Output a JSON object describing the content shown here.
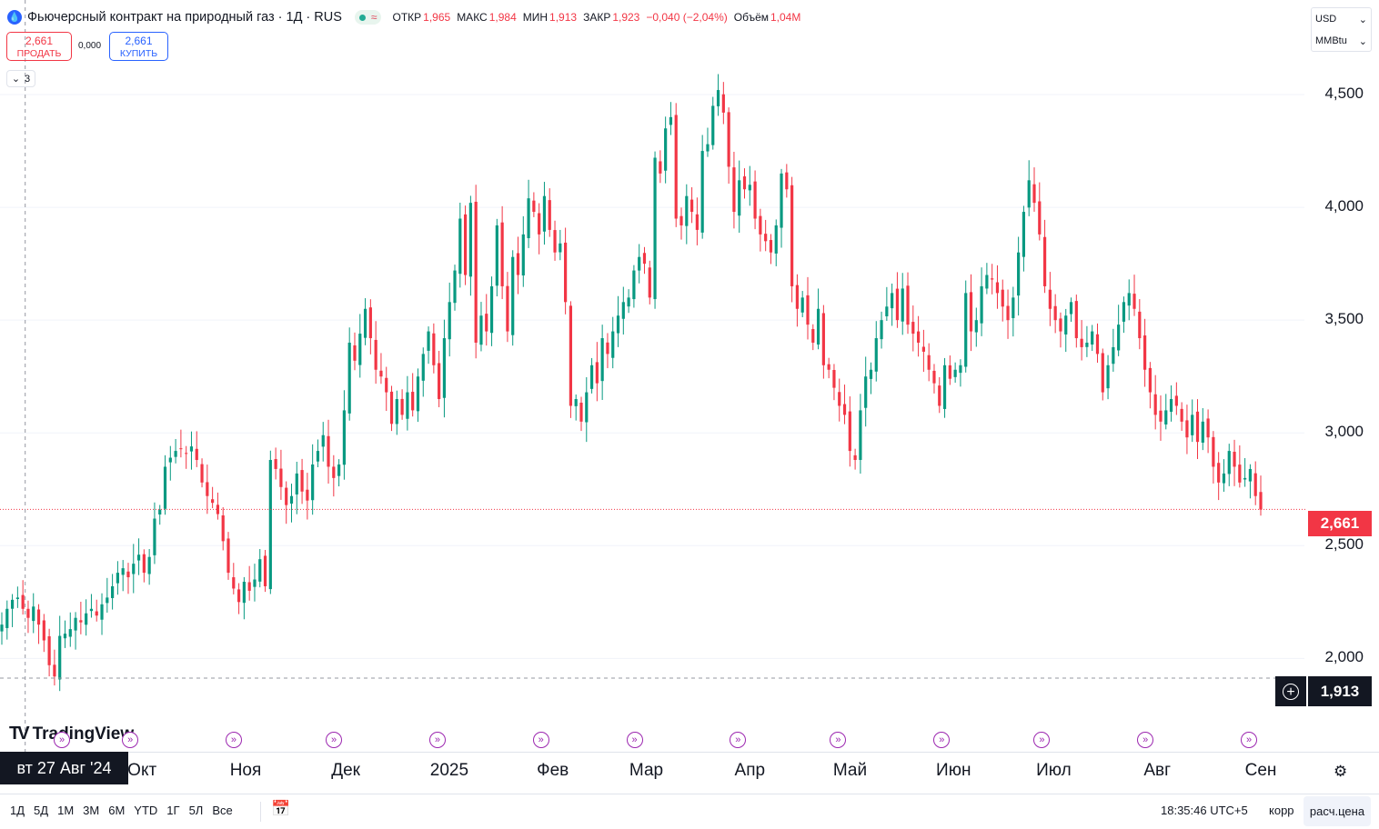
{
  "header": {
    "logo_glyph": "💧",
    "title": "Фьючерсный контракт на природный газ · 1Д · RUS",
    "status_wave": "≈",
    "ohlc": [
      {
        "k": "ОТКР",
        "v": "1,965"
      },
      {
        "k": "МАКС",
        "v": "1,984"
      },
      {
        "k": "МИН",
        "v": "1,913"
      },
      {
        "k": "ЗАКР",
        "v": "1,923"
      },
      {
        "k": "",
        "v": "−0,040 (−2,04%)"
      },
      {
        "k": "Объём",
        "v": "1,04M"
      }
    ]
  },
  "trade": {
    "sell_price": "2,661",
    "sell_label": "ПРОДАТЬ",
    "spread": "0,000",
    "buy_price": "2,661",
    "buy_label": "КУПИТЬ"
  },
  "indicators_toggle": {
    "chevron": "⌄",
    "count": "3"
  },
  "currency": {
    "currency": "USD",
    "unit": "MMBtu",
    "chevron": "⌄"
  },
  "price_axis": {
    "ticks": [
      {
        "value": 4.5,
        "label": "4,500"
      },
      {
        "value": 4.0,
        "label": "4,000"
      },
      {
        "value": 3.5,
        "label": "3,500"
      },
      {
        "value": 3.0,
        "label": "3,000"
      },
      {
        "value": 2.5,
        "label": "2,500"
      },
      {
        "value": 2.0,
        "label": "2,000"
      }
    ],
    "last_price": "2,661",
    "crosshair_price": "1,913",
    "add_alert": "+"
  },
  "time_axis": {
    "labels": [
      "Окт",
      "Ноя",
      "Дек",
      "2025",
      "Фев",
      "Мар",
      "Апр",
      "Май",
      "Июн",
      "Июл",
      "Авг",
      "Сен"
    ],
    "crosshair_date": "вт 27 Авг '24",
    "event_glyph": "»",
    "settings_glyph": "⚙"
  },
  "logo": {
    "mark": "TV",
    "text": "TradingView"
  },
  "bottom_bar": {
    "ranges": [
      "1Д",
      "5Д",
      "1М",
      "3М",
      "6М",
      "YTD",
      "1Г",
      "5Л",
      "Все"
    ],
    "date_range_icon": "📅",
    "clock": "18:35:46 UTC+5",
    "adj": "корр",
    "settle": "расч.цена"
  },
  "colors": {
    "up": "#089981",
    "down": "#f23645",
    "grid": "#f0f3fa",
    "crosshair": "#9598a1",
    "event": "#9c27b0"
  },
  "chart_data": {
    "type": "candlestick",
    "title": "Фьючерсный контракт на природный газ · 1Д · RUS",
    "x_range": [
      "2024-08-20",
      "2025-09-01"
    ],
    "ylim": [
      1.8,
      4.75
    ],
    "grid": true,
    "last_price": 2.661,
    "crosshair": {
      "date": "2024-08-27",
      "price": 1.913
    },
    "months": [
      "2024-10-01",
      "2024-11-01",
      "2024-12-01",
      "2025-01-01",
      "2025-02-01",
      "2025-03-01",
      "2025-04-01",
      "2025-05-01",
      "2025-06-01",
      "2025-07-01",
      "2025-08-01",
      "2025-09-01"
    ],
    "month_labels": [
      "Окт",
      "Ноя",
      "Дек",
      "2025",
      "Фев",
      "Мар",
      "Апр",
      "Май",
      "Июн",
      "Июл",
      "Авг",
      "Сен"
    ],
    "closes": [
      2.15,
      2.22,
      2.26,
      2.27,
      2.22,
      2.18,
      2.23,
      2.15,
      2.08,
      1.97,
      1.92,
      2.1,
      2.11,
      2.13,
      2.18,
      2.16,
      2.2,
      2.22,
      2.19,
      2.24,
      2.27,
      2.32,
      2.38,
      2.4,
      2.36,
      2.42,
      2.46,
      2.38,
      2.45,
      2.62,
      2.66,
      2.85,
      2.89,
      2.92,
      2.93,
      2.91,
      2.94,
      2.88,
      2.78,
      2.72,
      2.69,
      2.64,
      2.52,
      2.38,
      2.31,
      2.25,
      2.34,
      2.3,
      2.35,
      2.44,
      2.32,
      2.88,
      2.84,
      2.76,
      2.68,
      2.72,
      2.82,
      2.74,
      2.7,
      2.86,
      2.92,
      2.99,
      2.85,
      2.8,
      2.86,
      3.1,
      3.4,
      3.32,
      3.44,
      3.55,
      3.42,
      3.28,
      3.25,
      3.18,
      3.04,
      3.15,
      3.08,
      3.18,
      3.1,
      3.25,
      3.35,
      3.45,
      3.3,
      3.15,
      3.42,
      3.58,
      3.72,
      3.95,
      3.7,
      4.02,
      3.4,
      3.52,
      3.45,
      3.65,
      3.92,
      3.65,
      3.45,
      3.78,
      3.7,
      3.88,
      4.04,
      3.98,
      3.88,
      4.05,
      3.9,
      3.8,
      3.84,
      3.58,
      3.12,
      3.15,
      3.05,
      3.18,
      3.3,
      3.22,
      3.42,
      3.35,
      3.45,
      3.52,
      3.58,
      3.6,
      3.72,
      3.78,
      3.75,
      3.6,
      4.22,
      4.15,
      4.35,
      4.4,
      3.95,
      3.92,
      4.05,
      3.98,
      3.9,
      4.25,
      4.28,
      4.45,
      4.52,
      4.42,
      4.18,
      3.98,
      4.12,
      4.08,
      4.1,
      3.95,
      3.88,
      3.85,
      3.8,
      3.92,
      4.15,
      4.08,
      3.65,
      3.55,
      3.6,
      3.48,
      3.4,
      3.55,
      3.3,
      3.28,
      3.2,
      3.12,
      3.08,
      2.92,
      2.88,
      3.1,
      3.25,
      3.28,
      3.42,
      3.5,
      3.56,
      3.62,
      3.5,
      3.64,
      3.48,
      3.44,
      3.4,
      3.36,
      3.28,
      3.22,
      3.12,
      3.3,
      3.24,
      3.28,
      3.3,
      3.62,
      3.45,
      3.5,
      3.65,
      3.7,
      3.68,
      3.62,
      3.56,
      3.5,
      3.6,
      3.8,
      3.98,
      4.12,
      4.02,
      3.88,
      3.65,
      3.55,
      3.5,
      3.45,
      3.52,
      3.58,
      3.42,
      3.38,
      3.4,
      3.45,
      3.35,
      3.18,
      3.3,
      3.38,
      3.48,
      3.58,
      3.62,
      3.55,
      3.42,
      3.28,
      3.18,
      3.08,
      3.05,
      3.1,
      3.15,
      3.12,
      3.05,
      2.98,
      3.08,
      2.96,
      3.05,
      2.98,
      2.85,
      2.78,
      2.82,
      2.92,
      2.85,
      2.78,
      2.8,
      2.84,
      2.72,
      2.66
    ]
  }
}
